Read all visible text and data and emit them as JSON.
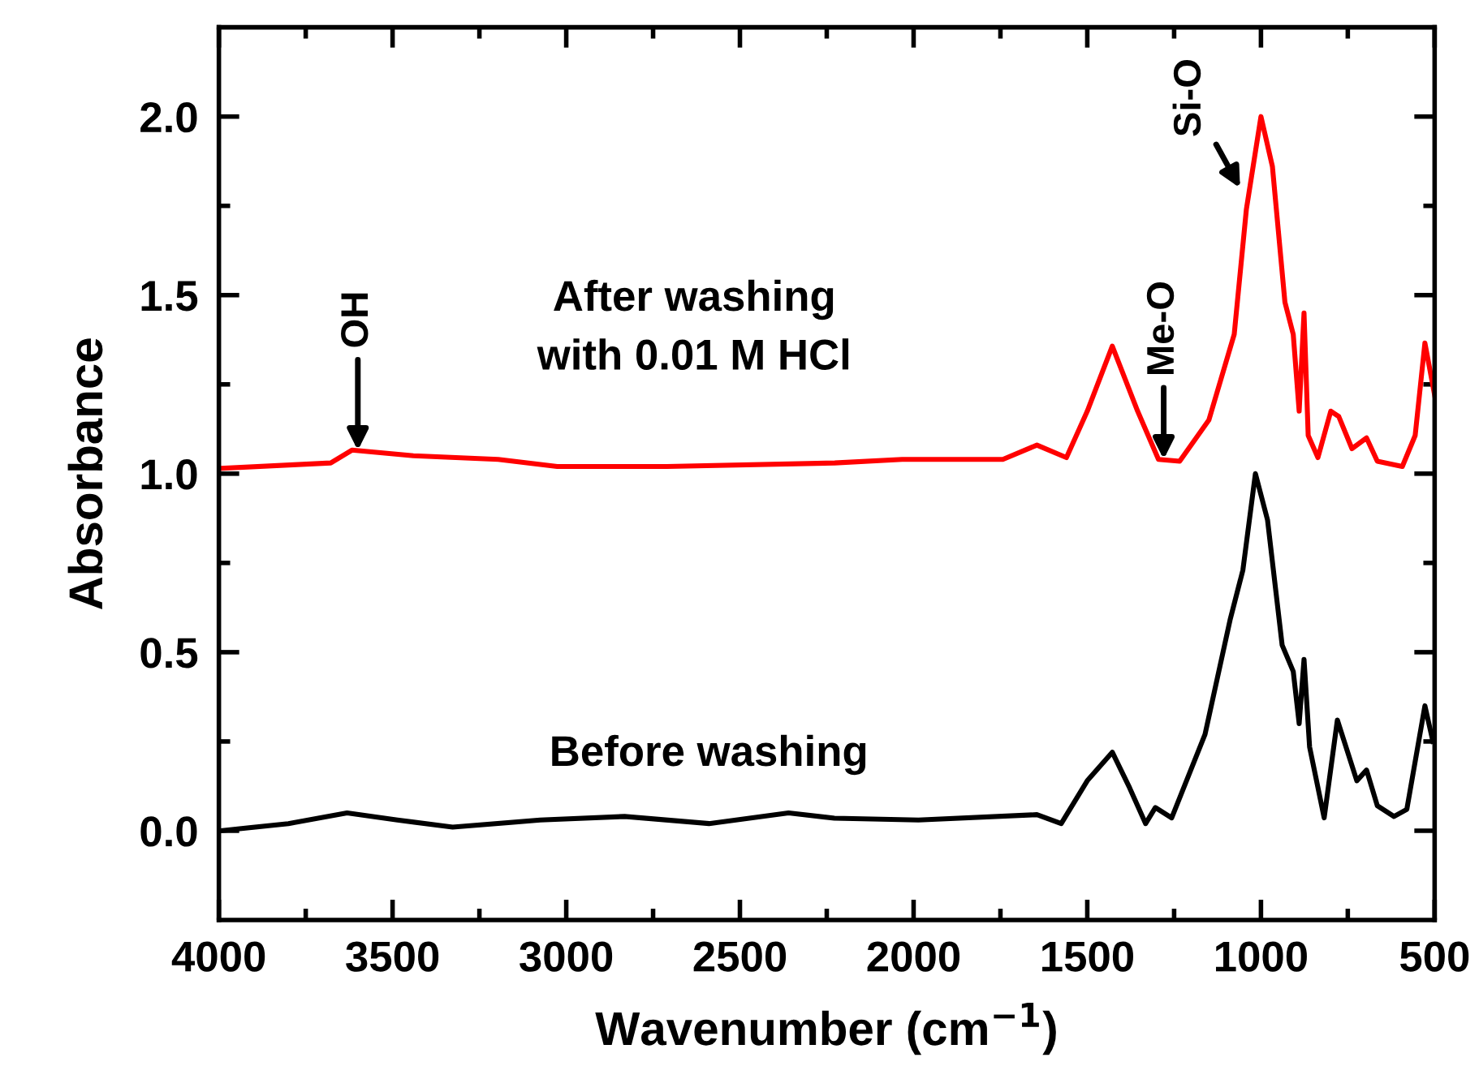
{
  "chart_data": {
    "type": "line",
    "xlabel": "Wavenumber (cm$^{−1}$)",
    "ylabel": "Absorbance",
    "xlim": [
      4000,
      500
    ],
    "ylim": [
      -0.25,
      2.25
    ],
    "xticks": [
      4000,
      3500,
      3000,
      2500,
      2000,
      1500,
      1000,
      500
    ],
    "yticks": [
      {
        "value": 0,
        "label": "0.0"
      },
      {
        "value": 0.5,
        "label": "0.5"
      },
      {
        "value": 1,
        "label": "1.0"
      },
      {
        "value": 1.5,
        "label": "1.5"
      },
      {
        "value": 2,
        "label": "2.0"
      }
    ],
    "grid": false,
    "marker": "none",
    "line_style": "solid",
    "series": [
      {
        "color": "#ff0000",
        "x": [
          3995,
          3678,
          3617,
          3440,
          3196,
          3026,
          2710,
          2227,
          2033,
          1743,
          1645,
          1560,
          1500,
          1428,
          1355,
          1295,
          1234,
          1150,
          1077,
          1042,
          1000,
          967,
          931,
          907,
          890,
          876,
          864,
          836,
          799,
          776,
          738,
          696,
          665,
          593,
          556,
          528,
          500
        ],
        "values": [
          1.015,
          1.03,
          1.066,
          1.05,
          1.04,
          1.02,
          1.02,
          1.03,
          1.04,
          1.04,
          1.08,
          1.045,
          1.175,
          1.357,
          1.175,
          1.04,
          1.035,
          1.15,
          1.39,
          1.74,
          2.0,
          1.86,
          1.48,
          1.39,
          1.175,
          1.45,
          1.107,
          1.045,
          1.175,
          1.16,
          1.07,
          1.1,
          1.035,
          1.02,
          1.107,
          1.366,
          1.22
        ]
      },
      {
        "color": "#000000",
        "x": [
          3995,
          3800,
          3631,
          3486,
          3327,
          3075,
          2832,
          2589,
          2360,
          2228,
          1986,
          1645,
          1575,
          1500,
          1428,
          1378,
          1332,
          1304,
          1257,
          1161,
          1089,
          1052,
          1016,
          981,
          939,
          907,
          890,
          876,
          860,
          818,
          780,
          724,
          696,
          665,
          617,
          580,
          528,
          505
        ],
        "values": [
          0.0,
          0.02,
          0.05,
          0.03,
          0.01,
          0.03,
          0.04,
          0.02,
          0.05,
          0.035,
          0.03,
          0.045,
          0.02,
          0.14,
          0.22,
          0.12,
          0.02,
          0.065,
          0.036,
          0.27,
          0.59,
          0.73,
          1.0,
          0.87,
          0.52,
          0.446,
          0.3,
          0.48,
          0.235,
          0.036,
          0.31,
          0.14,
          0.17,
          0.07,
          0.04,
          0.06,
          0.35,
          0.25
        ]
      }
    ],
    "annotations": [
      "After washing\nwith 0.01 M HCl",
      "Before washing",
      {
        "text": "OH",
        "x": 3600,
        "y": 1.065
      },
      {
        "text": "Me-O",
        "x": 1280,
        "y": 1.04
      },
      {
        "text": "Si-O",
        "x": 1060,
        "y": 1.8
      }
    ]
  }
}
